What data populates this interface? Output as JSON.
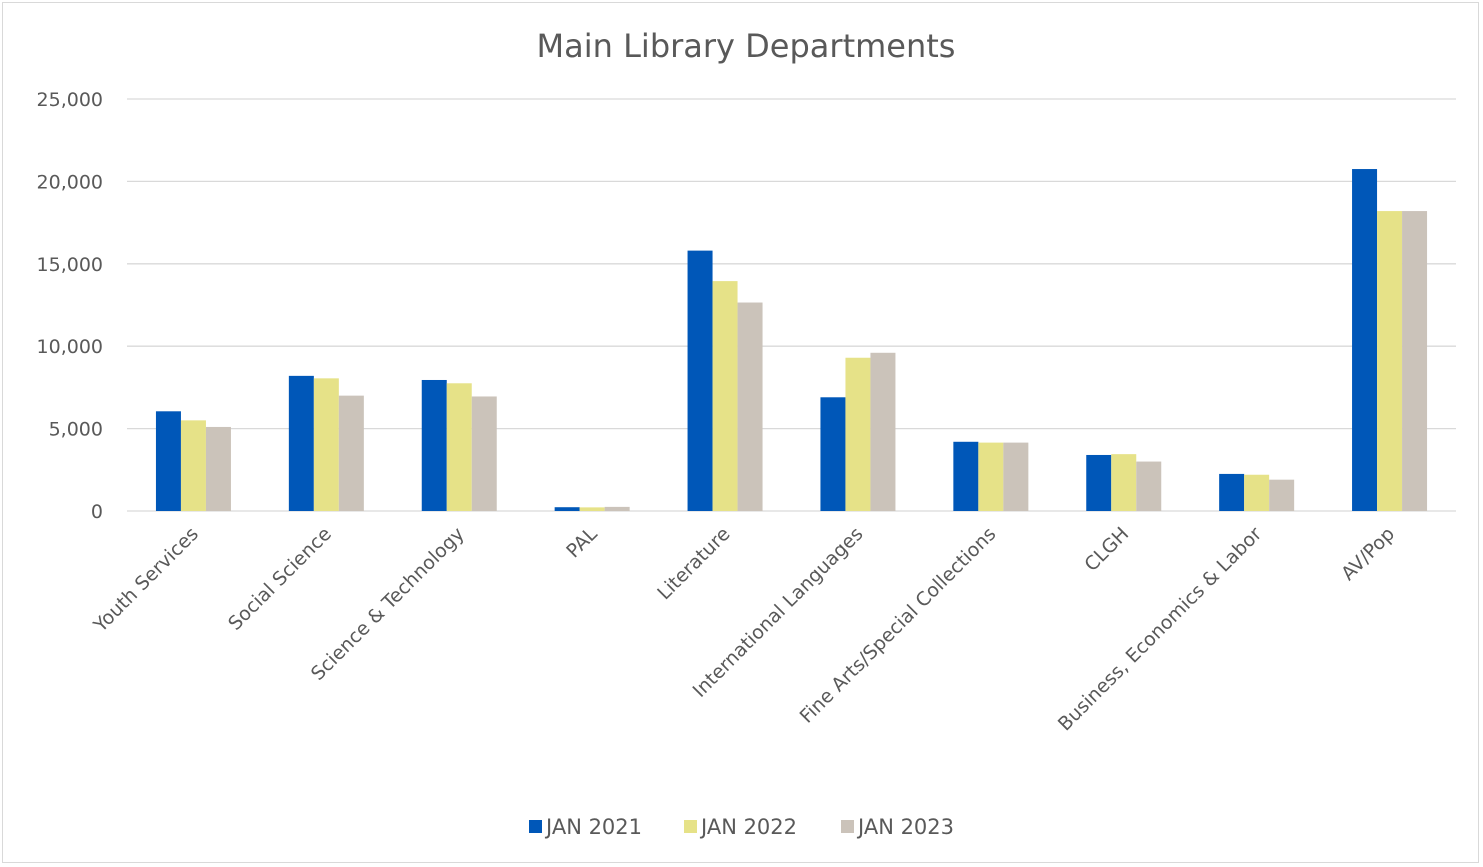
{
  "chart_data": {
    "type": "bar",
    "title": "Main Library Departments",
    "xlabel": "",
    "ylabel": "",
    "ylim": [
      0,
      25000
    ],
    "yticks": [
      0,
      5000,
      10000,
      15000,
      20000,
      25000
    ],
    "ytick_labels": [
      "0",
      "5,000",
      "10,000",
      "15,000",
      "20,000",
      "25,000"
    ],
    "grid": true,
    "legend_position": "bottom",
    "categories": [
      "Youth Services",
      "Social Science",
      "Science & Technology",
      "PAL",
      "Literature",
      "International Languages",
      "Fine Arts/Special Collections",
      "CLGH",
      "Business, Economics & Labor",
      "AV/Pop"
    ],
    "series": [
      {
        "name": "JAN 2021",
        "color": "#0057B8",
        "values": [
          6050,
          8200,
          7950,
          230,
          15800,
          6900,
          4200,
          3400,
          2250,
          20750
        ]
      },
      {
        "name": "JAN 2022",
        "color": "#E6E288",
        "values": [
          5500,
          8050,
          7750,
          220,
          13950,
          9300,
          4150,
          3450,
          2200,
          18200
        ]
      },
      {
        "name": "JAN 2023",
        "color": "#CBC3BA",
        "values": [
          5100,
          7000,
          6950,
          250,
          12650,
          9600,
          4150,
          3000,
          1900,
          18200
        ]
      }
    ]
  }
}
